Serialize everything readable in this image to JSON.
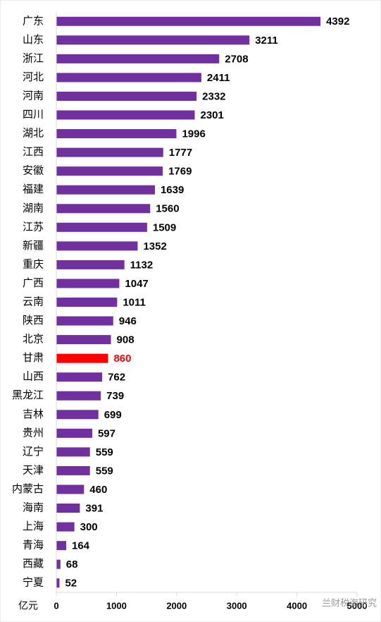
{
  "chart_data": {
    "type": "barh",
    "categories": [
      "广东",
      "山东",
      "浙江",
      "河北",
      "河南",
      "四川",
      "湖北",
      "江西",
      "安徽",
      "福建",
      "湖南",
      "江苏",
      "新疆",
      "重庆",
      "广西",
      "云南",
      "陕西",
      "北京",
      "甘肃",
      "山西",
      "黑龙江",
      "吉林",
      "贵州",
      "辽宁",
      "天津",
      "内蒙古",
      "海南",
      "上海",
      "青海",
      "西藏",
      "宁夏"
    ],
    "values": [
      4392,
      3211,
      2708,
      2411,
      2332,
      2301,
      1996,
      1777,
      1769,
      1639,
      1560,
      1509,
      1352,
      1132,
      1047,
      1011,
      946,
      908,
      860,
      762,
      739,
      699,
      597,
      559,
      559,
      460,
      391,
      300,
      164,
      68,
      52
    ],
    "color": "#7030a0",
    "highlight": "甘肃",
    "highlight_color": "#ff0000",
    "xlim": [
      0,
      5000
    ],
    "xticks": [
      0,
      1000,
      2000,
      3000,
      4000,
      5000
    ],
    "xlabel": "亿元",
    "grid": false,
    "watermark": "兰财税海研究"
  }
}
